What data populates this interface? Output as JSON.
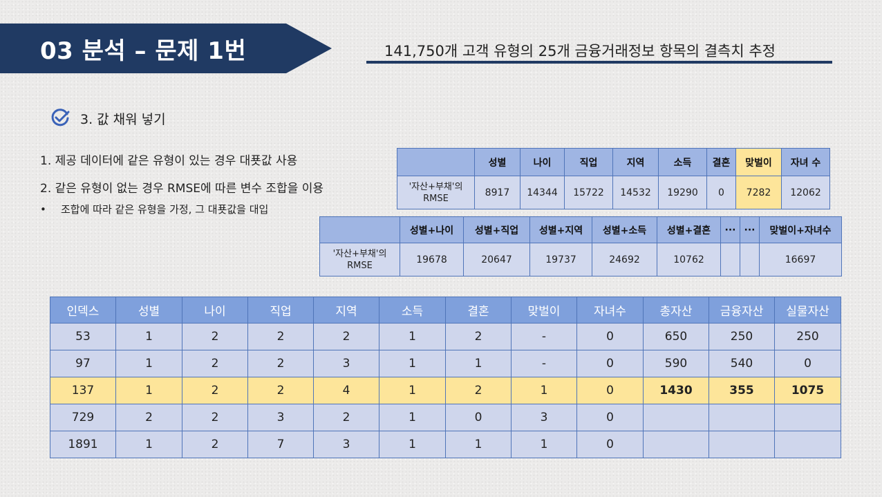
{
  "header": {
    "title": "03  분석 – 문제 1번",
    "subtitle": "141,750개 고객 유형의 25개 금융거래정보 항목의 결측치 추정"
  },
  "section": {
    "icon": "check-circle-icon",
    "title": "3. 값 채워 넣기"
  },
  "bullets": [
    "1. 제공 데이터에 같은 유형이 있는 경우 대푯값 사용",
    "2. 같은 유형이 없는 경우 RMSE에 따른 변수 조합을 이용",
    "조합에 따라 같은 유형을 가정, 그 대푯값을 대입"
  ],
  "bullet_marker": "•",
  "rmse_single": {
    "row_label": "'자산+부채'의 RMSE",
    "headers": [
      "성별",
      "나이",
      "직업",
      "지역",
      "소득",
      "결혼",
      "맞벌이",
      "자녀 수"
    ],
    "values": [
      "8917",
      "14344",
      "15722",
      "14532",
      "19290",
      "0",
      "7282",
      "12062"
    ],
    "highlight_column": "맞벌이",
    "highlight_color": "#fde59a"
  },
  "rmse_combo": {
    "row_label": "'자산+부채'의 RMSE",
    "headers": [
      "성별+나이",
      "성별+직업",
      "성별+지역",
      "성별+소득",
      "성별+결혼",
      "···",
      "···",
      "맞벌이+자녀수"
    ],
    "values": [
      "19678",
      "20647",
      "19737",
      "24692",
      "10762",
      "",
      "",
      "16697"
    ]
  },
  "data_table": {
    "headers": [
      "인덱스",
      "성별",
      "나이",
      "직업",
      "지역",
      "소득",
      "결혼",
      "맞벌이",
      "자녀수",
      "총자산",
      "금융자산",
      "실물자산"
    ],
    "rows": [
      [
        "53",
        "1",
        "2",
        "2",
        "2",
        "1",
        "2",
        "-",
        "0",
        "650",
        "250",
        "250"
      ],
      [
        "97",
        "1",
        "2",
        "2",
        "3",
        "1",
        "1",
        "-",
        "0",
        "590",
        "540",
        "0"
      ],
      [
        "137",
        "1",
        "2",
        "2",
        "4",
        "1",
        "2",
        "1",
        "0",
        "1430",
        "355",
        "1075"
      ],
      [
        "729",
        "2",
        "2",
        "3",
        "2",
        "1",
        "0",
        "3",
        "0",
        "",
        "",
        ""
      ],
      [
        "1891",
        "1",
        "2",
        "7",
        "3",
        "1",
        "1",
        "1",
        "0",
        "",
        "",
        ""
      ]
    ],
    "highlight_row": "137"
  },
  "colors": {
    "banner": "#203a63",
    "header_fill": "#7fa0dc",
    "light_header_fill": "#9fb5e3",
    "cell_fill": "#d2d9ee",
    "highlight": "#fde59a",
    "check_icon": "#3a62b8"
  }
}
